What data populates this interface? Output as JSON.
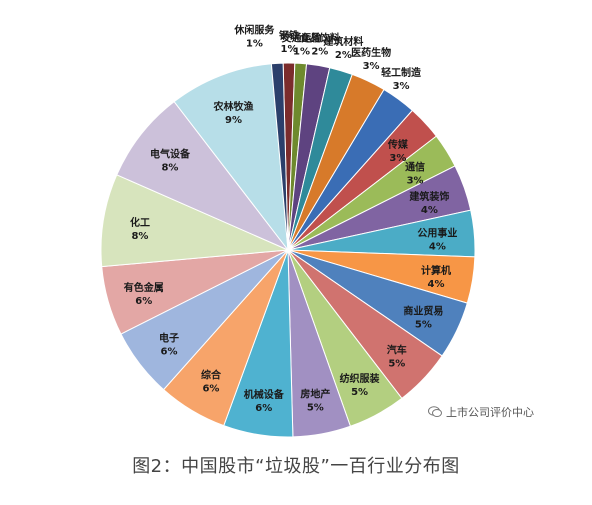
{
  "caption": "图2：中国股市“垃圾股”一百行业分布图",
  "watermark": "上市公司评价中心",
  "chart_data": {
    "type": "pie",
    "title": "",
    "slices": [
      {
        "label": "钢铁",
        "value": 1,
        "display": "1%",
        "color": "#7b2c2c"
      },
      {
        "label": "交通运输",
        "value": 1,
        "display": "1%",
        "color": "#6e8a2e"
      },
      {
        "label": "食品饮料",
        "value": 2,
        "display": "2%",
        "color": "#5e4380"
      },
      {
        "label": "建筑材料",
        "value": 2,
        "display": "2%",
        "color": "#2f8a9a"
      },
      {
        "label": "医药生物",
        "value": 3,
        "display": "3%",
        "color": "#d77a2a"
      },
      {
        "label": "轻工制造",
        "value": 3,
        "display": "3%",
        "color": "#3a6db5"
      },
      {
        "label": "传媒",
        "value": 3,
        "display": "3%",
        "color": "#c0504d"
      },
      {
        "label": "通信",
        "value": 3,
        "display": "3%",
        "color": "#9bbb59"
      },
      {
        "label": "建筑装饰",
        "value": 4,
        "display": "4%",
        "color": "#8064a2"
      },
      {
        "label": "公用事业",
        "value": 4,
        "display": "4%",
        "color": "#4bacc6"
      },
      {
        "label": "计算机",
        "value": 4,
        "display": "4%",
        "color": "#f79646"
      },
      {
        "label": "商业贸易",
        "value": 5,
        "display": "5%",
        "color": "#4f81bd"
      },
      {
        "label": "汽车",
        "value": 5,
        "display": "5%",
        "color": "#d0736f"
      },
      {
        "label": "纺织服装",
        "value": 5,
        "display": "5%",
        "color": "#b3cf80"
      },
      {
        "label": "房地产",
        "value": 5,
        "display": "5%",
        "color": "#a190c2"
      },
      {
        "label": "机械设备",
        "value": 6,
        "display": "6%",
        "color": "#4fb2d0"
      },
      {
        "label": "综合",
        "value": 6,
        "display": "6%",
        "color": "#f7a46a"
      },
      {
        "label": "电子",
        "value": 6,
        "display": "6%",
        "color": "#9fb6de"
      },
      {
        "label": "有色金属",
        "value": 6,
        "display": "6%",
        "color": "#e3a7a5"
      },
      {
        "label": "化工",
        "value": 8,
        "display": "8%",
        "color": "#d7e4bd"
      },
      {
        "label": "电气设备",
        "value": 8,
        "display": "8%",
        "color": "#ccc1da"
      },
      {
        "label": "农林牧渔",
        "value": 9,
        "display": "9%",
        "color": "#b7dee8"
      },
      {
        "label": "休闲服务",
        "value": 1,
        "display": "1%",
        "color": "#2b3f6b"
      }
    ]
  }
}
